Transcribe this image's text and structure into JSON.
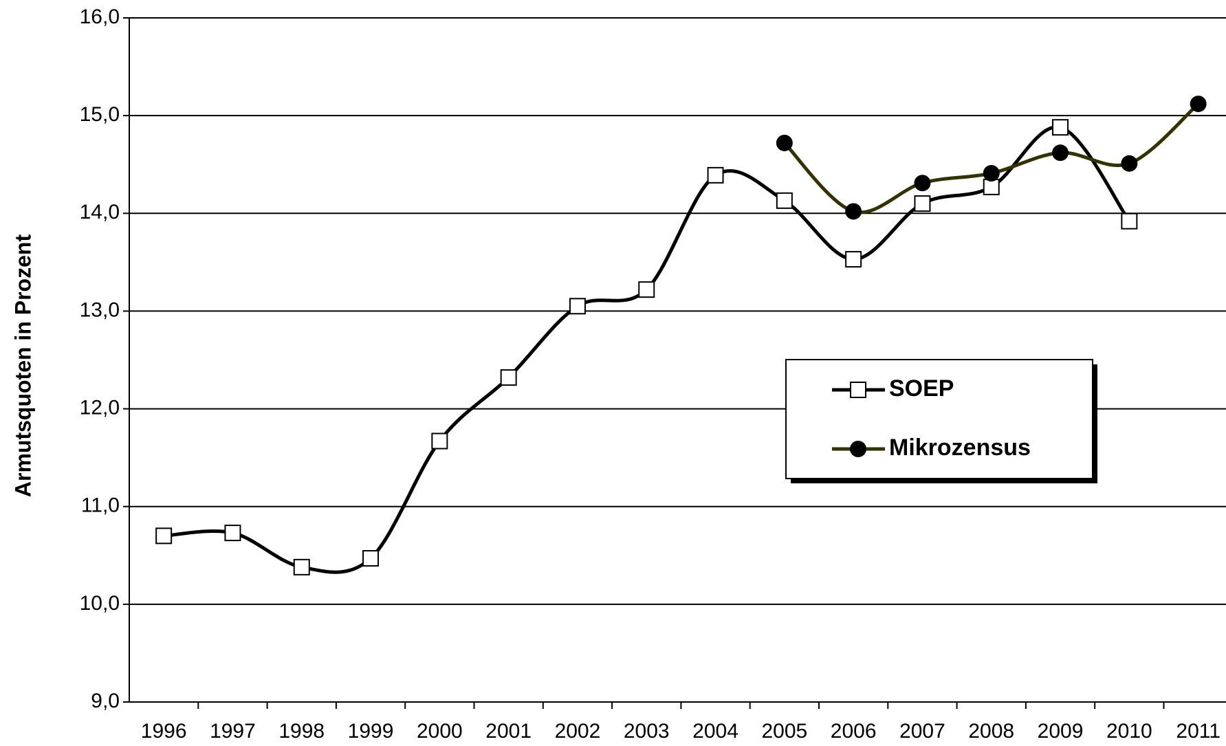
{
  "chart_data": {
    "type": "line",
    "y_axis_label": "Armutsquoten in Prozent",
    "categories": [
      "1996",
      "1997",
      "1998",
      "1999",
      "2000",
      "2001",
      "2002",
      "2003",
      "2004",
      "2005",
      "2006",
      "2007",
      "2008",
      "2009",
      "2010",
      "2011"
    ],
    "series": [
      {
        "name": "SOEP",
        "color": "#000000",
        "marker": "square",
        "values": [
          10.7,
          10.73,
          10.38,
          10.47,
          11.67,
          12.32,
          13.05,
          13.22,
          14.39,
          14.13,
          13.53,
          14.1,
          14.27,
          14.88,
          13.92,
          null
        ]
      },
      {
        "name": "Mikrozensus",
        "color": "#333300",
        "marker": "circle",
        "values": [
          null,
          null,
          null,
          null,
          null,
          null,
          null,
          null,
          null,
          14.72,
          14.02,
          14.31,
          14.41,
          14.62,
          14.51,
          15.12
        ]
      }
    ],
    "ylim": [
      9,
      16
    ],
    "yticks": [
      {
        "value": 9,
        "label": "9,0"
      },
      {
        "value": 10,
        "label": "10,0"
      },
      {
        "value": 11,
        "label": "11,0"
      },
      {
        "value": 12,
        "label": "12,0"
      },
      {
        "value": 13,
        "label": "13,0"
      },
      {
        "value": 14,
        "label": "14,0"
      },
      {
        "value": 15,
        "label": "15,0"
      },
      {
        "value": 16,
        "label": "16,0"
      }
    ],
    "grid": true
  }
}
